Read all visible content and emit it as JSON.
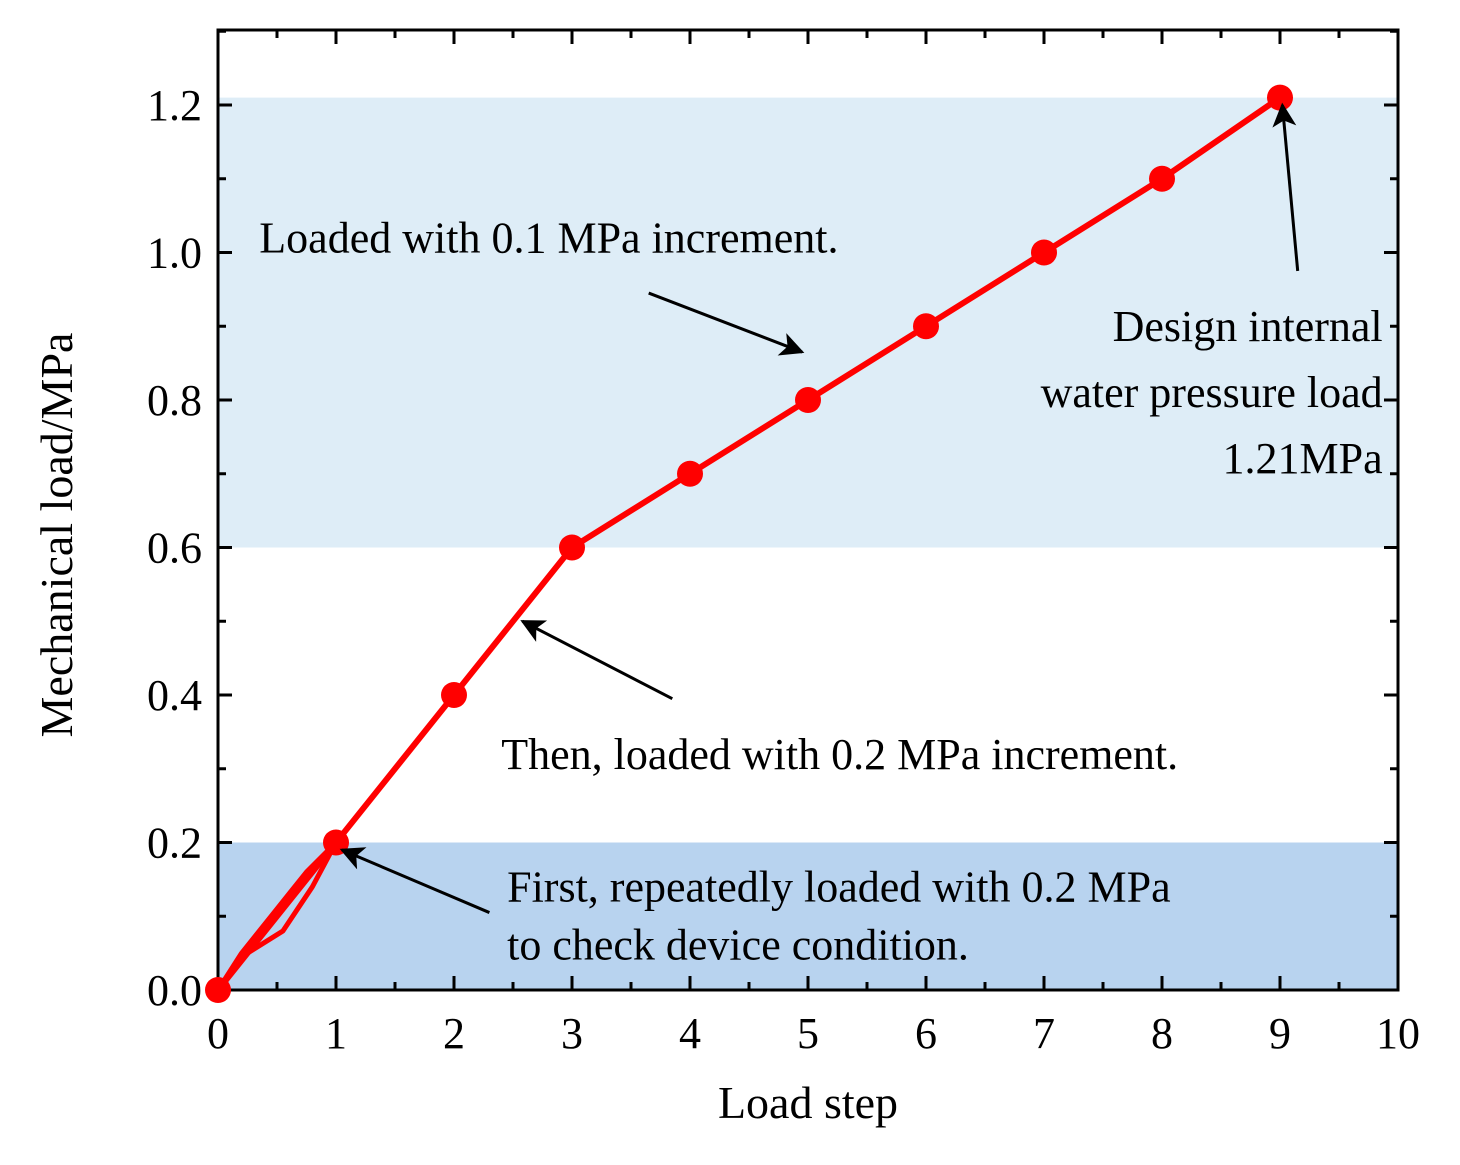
{
  "chart_data": {
    "type": "line",
    "xlabel": "Load step",
    "ylabel": "Mechanical load/MPa",
    "xlim": [
      0,
      10
    ],
    "ylim": [
      0,
      1.3
    ],
    "x_ticks": [
      0,
      1,
      2,
      3,
      4,
      5,
      6,
      7,
      8,
      9,
      10
    ],
    "x_tick_labels": [
      "0",
      "1",
      "2",
      "3",
      "4",
      "5",
      "6",
      "7",
      "8",
      "9",
      "10"
    ],
    "y_ticks": [
      0,
      0.2,
      0.4,
      0.6,
      0.8,
      1.0,
      1.2
    ],
    "y_tick_labels": [
      "0.0",
      "0.2",
      "0.4",
      "0.6",
      "0.8",
      "1.0",
      "1.2"
    ],
    "grid": false,
    "series": [
      {
        "name": "Mechanical load",
        "color": "#ff0000",
        "x": [
          0,
          1,
          2,
          3,
          4,
          5,
          6,
          7,
          8,
          9
        ],
        "y": [
          0,
          0.2,
          0.4,
          0.6,
          0.7,
          0.8,
          0.9,
          1.0,
          1.1,
          1.21
        ]
      }
    ],
    "repeat_loading_loop": {
      "color": "#ff0000",
      "x": [
        0,
        0.25,
        0.55,
        0.8,
        1,
        0.75,
        0.45,
        0.2,
        0
      ],
      "y": [
        0,
        0.05,
        0.08,
        0.14,
        0.2,
        0.16,
        0.1,
        0.05,
        0
      ]
    },
    "bands": [
      {
        "name": "initial-check-band",
        "y_from": 0,
        "y_to": 0.2,
        "color": "#b8d3ef"
      },
      {
        "name": "fine-increment-band",
        "y_from": 0.6,
        "y_to": 1.21,
        "color": "#deedf7"
      }
    ],
    "annotations": [
      {
        "name": "annotation-fine-increment",
        "lines": [
          "Loaded with 0.1 MPa increment."
        ],
        "text_at": [
          0.35,
          1.0
        ],
        "arrow_from": [
          3.65,
          0.945
        ],
        "arrow_to": [
          4.95,
          0.865
        ]
      },
      {
        "name": "annotation-design-load",
        "lines": [
          "Design internal",
          "water pressure load",
          "1.21MPa"
        ],
        "text_at": [
          9.87,
          0.88
        ],
        "arrow_from": [
          9.15,
          0.975
        ],
        "arrow_to": [
          9.02,
          1.2
        ]
      },
      {
        "name": "annotation-coarse-increment",
        "lines": [
          "Then, loaded with 0.2 MPa increment."
        ],
        "text_at": [
          2.4,
          0.3
        ],
        "arrow_from": [
          3.85,
          0.395
        ],
        "arrow_to": [
          2.58,
          0.5
        ]
      },
      {
        "name": "annotation-initial-check",
        "lines": [
          "First,  repeatedly loaded with 0.2 MPa",
          "to check device condition."
        ],
        "text_at": [
          2.45,
          0.12
        ],
        "arrow_from": [
          2.3,
          0.105
        ],
        "arrow_to": [
          1.05,
          0.19
        ]
      }
    ],
    "colors": {
      "line": "#ff0000",
      "marker": "#ff0000",
      "axis": "#000000",
      "arrow": "#000000"
    }
  }
}
